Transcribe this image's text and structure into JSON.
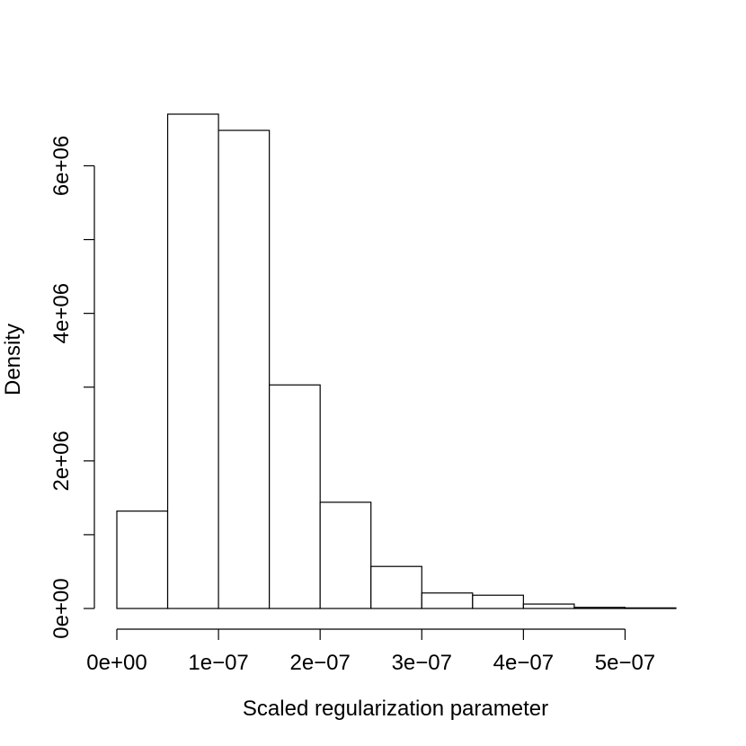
{
  "chart_data": {
    "type": "bar",
    "title": "",
    "xlabel": "Scaled regularization parameter",
    "ylabel": "Density",
    "bins": [
      [
        0.0,
        5e-08
      ],
      [
        5e-08,
        1e-07
      ],
      [
        1e-07,
        1.5e-07
      ],
      [
        1.5e-07,
        2e-07
      ],
      [
        2e-07,
        2.5e-07
      ],
      [
        2.5e-07,
        3e-07
      ],
      [
        3e-07,
        3.5e-07
      ],
      [
        3.5e-07,
        4e-07
      ],
      [
        4e-07,
        4.5e-07
      ],
      [
        4.5e-07,
        5e-07
      ],
      [
        5e-07,
        5.5e-07
      ]
    ],
    "values": [
      1320000,
      6700000,
      6480000,
      3030000,
      1440000,
      570000,
      210000,
      180000,
      60000,
      15000,
      8000
    ],
    "xlim": [
      0,
      5.5e-07
    ],
    "ylim": [
      0,
      6700000
    ],
    "x_ticks": {
      "values": [
        0,
        1e-07,
        2e-07,
        3e-07,
        4e-07,
        5e-07
      ],
      "labels": [
        "0e+00",
        "1e−07",
        "2e−07",
        "3e−07",
        "4e−07",
        "5e−07"
      ]
    },
    "y_ticks": {
      "values": [
        0,
        1000000,
        2000000,
        3000000,
        4000000,
        5000000,
        6000000
      ],
      "labels": [
        "0e+00",
        "",
        "2e+06",
        "",
        "4e+06",
        "",
        "6e+06"
      ]
    },
    "grid": false,
    "legend": "none",
    "colors": {
      "bar_fill": "#ffffff",
      "bar_stroke": "#000000",
      "axis": "#000000",
      "background": "#ffffff"
    }
  }
}
